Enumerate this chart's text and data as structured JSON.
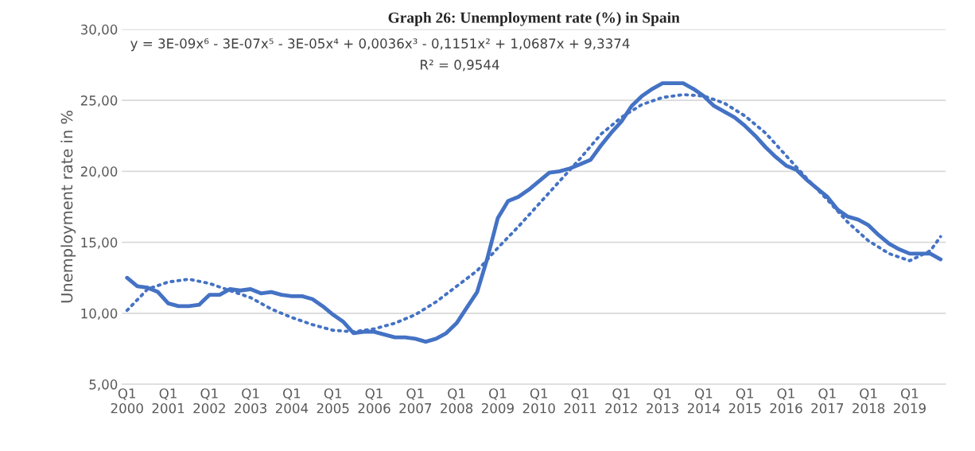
{
  "chart_data": {
    "type": "line",
    "title": "Graph 26: Unemployment rate (%) in Spain",
    "ylabel": "Unemployment rate in %",
    "annotations": [
      "y = 3E-09x⁶ - 3E-07x⁵ - 3E-05x⁴ + 0,0036x³ - 0,1151x² + 1,0687x + 9,3374",
      "R² = 0,9544"
    ],
    "categories": [
      "Q1\n2000",
      null,
      null,
      null,
      "Q1\n2001",
      null,
      null,
      null,
      "Q1\n2002",
      null,
      null,
      null,
      "Q1\n2003",
      null,
      null,
      null,
      "Q1\n2004",
      null,
      null,
      null,
      "Q1\n2005",
      null,
      null,
      null,
      "Q1\n2006",
      null,
      null,
      null,
      "Q1\n2007",
      null,
      null,
      null,
      "Q1\n2008",
      null,
      null,
      null,
      "Q1\n2009",
      null,
      null,
      null,
      "Q1\n2010",
      null,
      null,
      null,
      "Q1\n2011",
      null,
      null,
      null,
      "Q1\n2012",
      null,
      null,
      null,
      "Q1\n2013",
      null,
      null,
      null,
      "Q1\n2014",
      null,
      null,
      null,
      "Q1\n2015",
      null,
      null,
      null,
      "Q1\n2016",
      null,
      null,
      null,
      "Q1\n2017",
      null,
      null,
      null,
      "Q1\n2018",
      null,
      null,
      null,
      "Q1\n2019",
      null,
      null,
      null
    ],
    "series": [
      {
        "color": "#4472c4",
        "line_style": "solid",
        "values": [
          12.5,
          11.9,
          11.8,
          11.5,
          10.7,
          10.5,
          10.5,
          10.6,
          11.3,
          11.3,
          11.7,
          11.6,
          11.7,
          11.4,
          11.5,
          11.3,
          11.2,
          11.2,
          11.0,
          10.5,
          9.9,
          9.4,
          8.6,
          8.7,
          8.7,
          8.5,
          8.3,
          8.3,
          8.2,
          8.0,
          8.2,
          8.6,
          9.3,
          10.4,
          11.5,
          13.9,
          16.7,
          17.9,
          18.2,
          18.7,
          19.3,
          19.9,
          20.0,
          20.2,
          20.5,
          20.8,
          21.8,
          22.7,
          23.5,
          24.6,
          25.3,
          25.8,
          26.2,
          26.2,
          26.2,
          25.8,
          25.3,
          24.6,
          24.2,
          23.8,
          23.2,
          22.5,
          21.7,
          21.0,
          20.4,
          20.1,
          19.4,
          18.8,
          18.2,
          17.3,
          16.8,
          16.6,
          16.2,
          15.5,
          14.9,
          14.5,
          14.2,
          14.2,
          14.2,
          13.8
        ]
      },
      {
        "color": "#4472c4",
        "line_style": "dotted",
        "values": [
          10.2,
          null,
          11.7,
          null,
          12.2,
          null,
          12.4,
          null,
          12.1,
          null,
          11.6,
          null,
          11.1,
          null,
          10.3,
          null,
          9.7,
          null,
          9.2,
          null,
          8.8,
          null,
          8.7,
          null,
          8.9,
          null,
          9.3,
          null,
          9.9,
          null,
          10.8,
          null,
          11.9,
          null,
          13.0,
          null,
          14.6,
          null,
          16.1,
          null,
          17.7,
          null,
          19.3,
          null,
          20.9,
          null,
          22.6,
          null,
          23.8,
          null,
          24.7,
          null,
          25.2,
          null,
          25.4,
          null,
          25.3,
          null,
          24.8,
          null,
          23.9,
          null,
          22.7,
          null,
          21.1,
          null,
          19.5,
          null,
          18.0,
          null,
          16.4,
          null,
          15.1,
          null,
          14.2,
          null,
          13.7,
          null,
          14.4,
          15.4
        ]
      }
    ],
    "ylim": [
      5,
      30
    ],
    "yticks": [
      {
        "value": 5,
        "label": "5,00"
      },
      {
        "value": 10,
        "label": "10,00"
      },
      {
        "value": 15,
        "label": "15,00"
      },
      {
        "value": 20,
        "label": "20,00"
      },
      {
        "value": 25,
        "label": "25,00"
      },
      {
        "value": 30,
        "label": "30,00"
      }
    ],
    "grid": "y",
    "legend": false,
    "marker": "none"
  }
}
